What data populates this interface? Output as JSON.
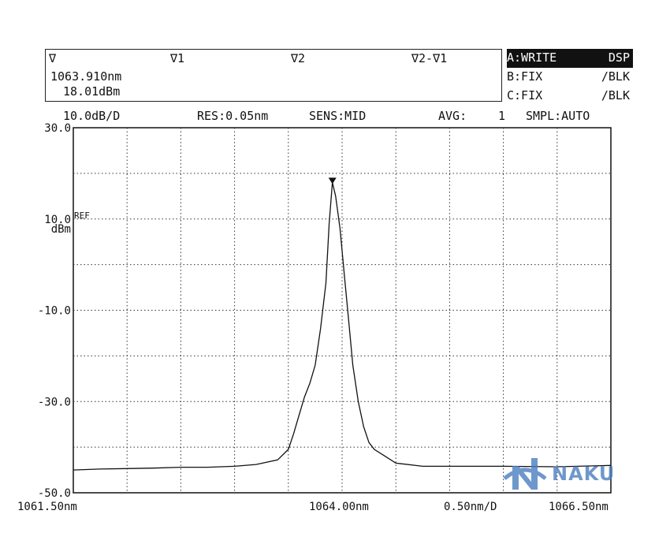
{
  "markers": {
    "labels": [
      "∇",
      "∇1",
      "∇2",
      "∇2-∇1"
    ],
    "wavelength": "1063.910nm",
    "level": "18.01dBm"
  },
  "traces": [
    {
      "name": "A:WRITE",
      "mode": "DSP",
      "active": true
    },
    {
      "name": "B:FIX",
      "mode": "/BLK",
      "active": false
    },
    {
      "name": "C:FIX",
      "mode": "/BLK",
      "active": false
    }
  ],
  "settings": {
    "scale": "10.0dB/D",
    "resolution": "RES:0.05nm",
    "sensitivity": "SENS:MID",
    "averaging_label": "AVG:",
    "averaging_value": "1",
    "sampling": "SMPL:AUTO"
  },
  "logo": {
    "text": "NAKU"
  },
  "chart_data": {
    "type": "line",
    "title": "",
    "xlabel": "",
    "ylabel": "dBm",
    "xlim": [
      1061.5,
      1066.5
    ],
    "ylim": [
      -50,
      30
    ],
    "ytick_labels": [
      "30.0",
      "10.0",
      "-10.0",
      "-30.0",
      "-50.0"
    ],
    "ytick_values": [
      30,
      10,
      -10,
      -30,
      -50
    ],
    "ref_label": "REF",
    "ref_level": 10,
    "x_labels": {
      "start": "1061.50nm",
      "center": "1064.00nm",
      "span": "0.50nm/D",
      "stop": "1066.50nm"
    },
    "grid": true,
    "grid_divisions": {
      "x": 10,
      "y": 8
    },
    "series": [
      {
        "color": "#111111",
        "x": [
          1061.5,
          1061.75,
          1062.0,
          1062.25,
          1062.5,
          1062.75,
          1063.0,
          1063.2,
          1063.4,
          1063.5,
          1063.55,
          1063.6,
          1063.65,
          1063.7,
          1063.75,
          1063.8,
          1063.85,
          1063.88,
          1063.91,
          1063.94,
          1063.98,
          1064.02,
          1064.06,
          1064.1,
          1064.15,
          1064.2,
          1064.25,
          1064.3,
          1064.4,
          1064.5,
          1064.75,
          1065.0,
          1065.5,
          1066.0,
          1066.5
        ],
        "y": [
          -45.0,
          -44.8,
          -44.7,
          -44.6,
          -44.4,
          -44.4,
          -44.2,
          -43.8,
          -42.8,
          -40.5,
          -37.0,
          -33.0,
          -29.0,
          -26.0,
          -22.0,
          -14.0,
          -4.0,
          9.0,
          18.0,
          15.0,
          8.0,
          -2.0,
          -12.0,
          -22.0,
          -30.0,
          -35.5,
          -39.0,
          -40.5,
          -42.0,
          -43.5,
          -44.2,
          -44.2,
          -44.2,
          -44.3,
          -44.0
        ]
      }
    ],
    "marker": {
      "x": 1063.91,
      "y": 18.01
    }
  }
}
